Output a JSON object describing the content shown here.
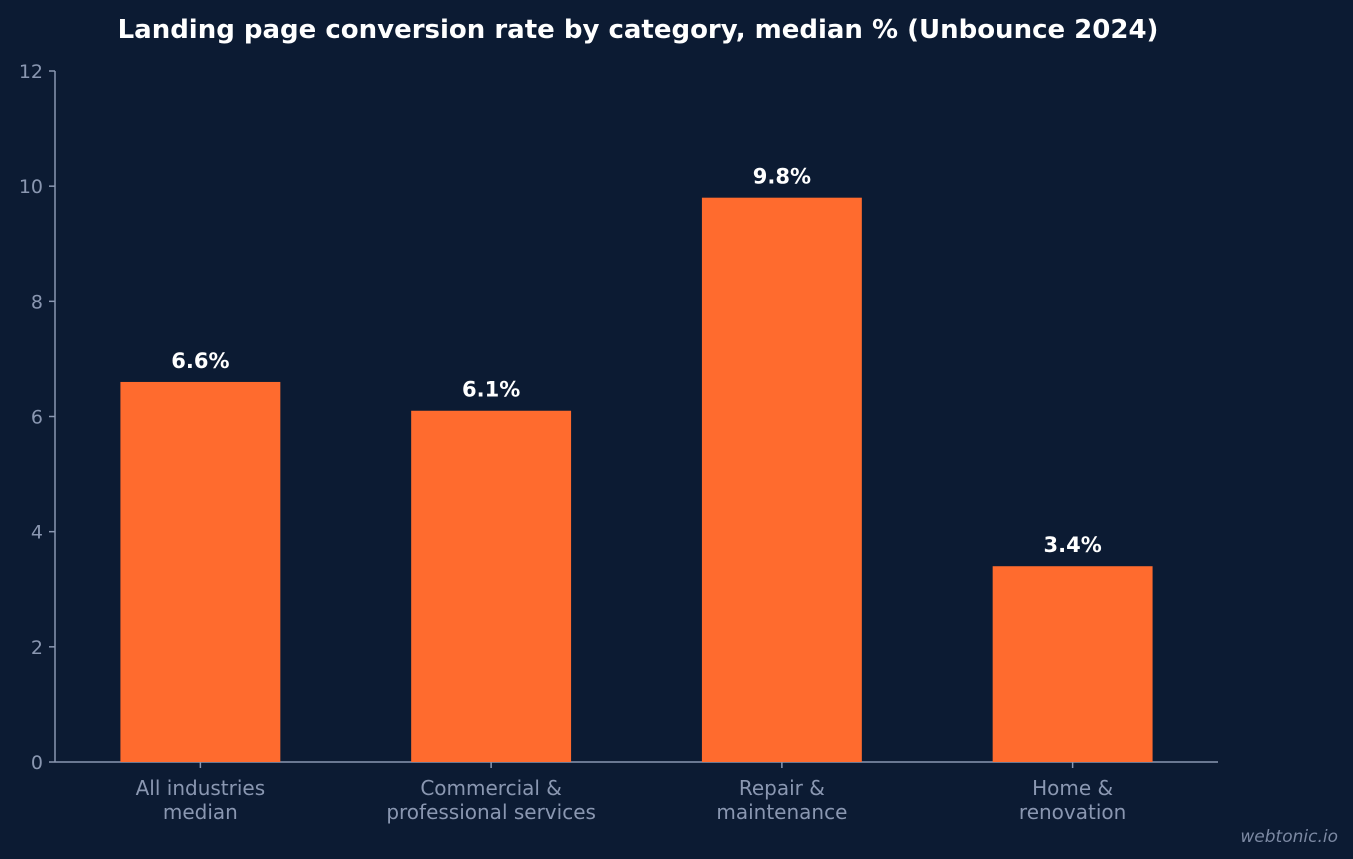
{
  "chart_data": {
    "type": "bar",
    "title": "Landing page conversion rate by category, median % (Unbounce 2024)",
    "categories": [
      [
        "All industries",
        "median"
      ],
      [
        "Commercial &",
        "professional services"
      ],
      [
        "Repair &",
        "maintenance"
      ],
      [
        "Home &",
        "renovation"
      ]
    ],
    "values": [
      6.6,
      6.1,
      9.8,
      3.4
    ],
    "data_labels": [
      "6.6%",
      "6.1%",
      "9.8%",
      "3.4%"
    ],
    "ylim": [
      0,
      12
    ],
    "yticks": [
      0,
      2,
      4,
      6,
      8,
      10,
      12
    ],
    "grid": false,
    "colors": {
      "background": "#0c1b33",
      "bar": "#ff6b2e",
      "axis": "#8a97b1",
      "label": "#ffffff"
    }
  },
  "watermark": "webtonic.io"
}
